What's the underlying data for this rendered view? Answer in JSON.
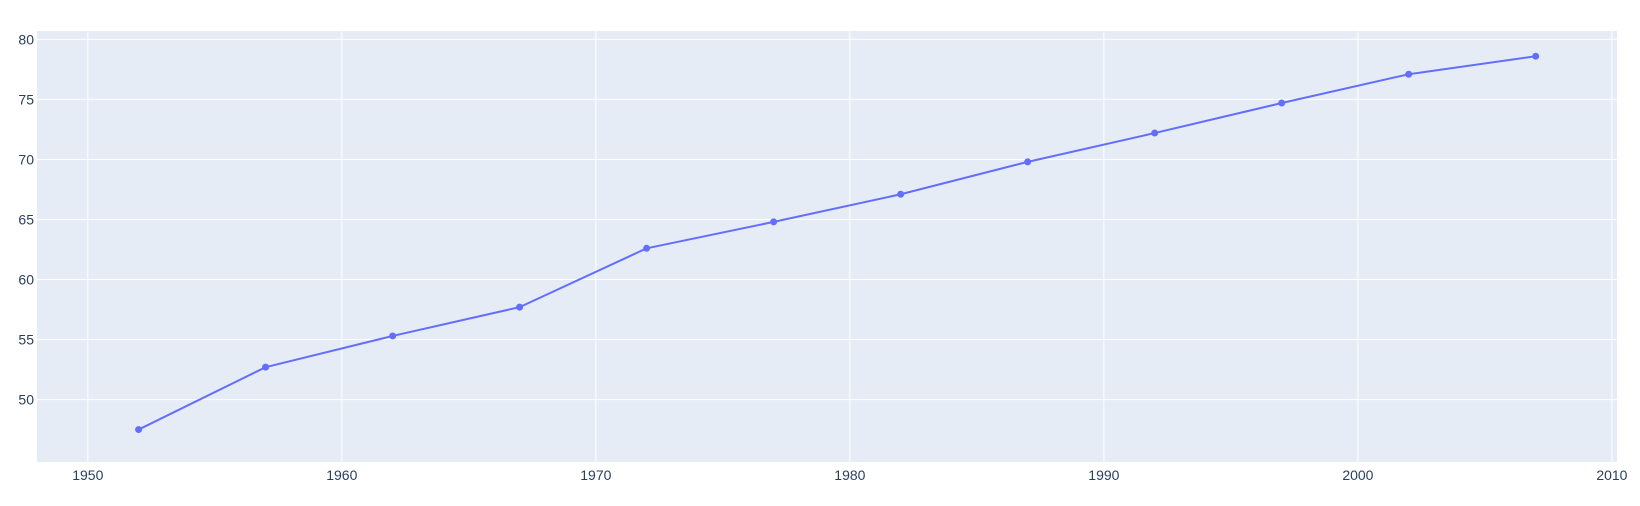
{
  "chart_data": {
    "type": "line",
    "title": "",
    "xlabel": "",
    "ylabel": "",
    "x": [
      1952,
      1957,
      1962,
      1967,
      1972,
      1977,
      1982,
      1987,
      1992,
      1997,
      2002,
      2007
    ],
    "series": [
      {
        "values": [
          47.5,
          52.7,
          55.3,
          57.7,
          62.6,
          64.8,
          67.1,
          69.8,
          72.2,
          74.7,
          77.1,
          78.6
        ]
      }
    ],
    "xlim": [
      1948,
      2010.2
    ],
    "ylim": [
      44.8,
      80.7
    ],
    "x_ticks": [
      1950,
      1960,
      1970,
      1980,
      1990,
      2000,
      2010
    ],
    "y_ticks": [
      50,
      55,
      60,
      65,
      70,
      75,
      80
    ],
    "grid": true,
    "legend": "none",
    "colors": {
      "line": "#636efa",
      "plot_background": "#e5ecf6",
      "grid": "#ffffff",
      "tick_text": "#2a3f5f"
    }
  }
}
